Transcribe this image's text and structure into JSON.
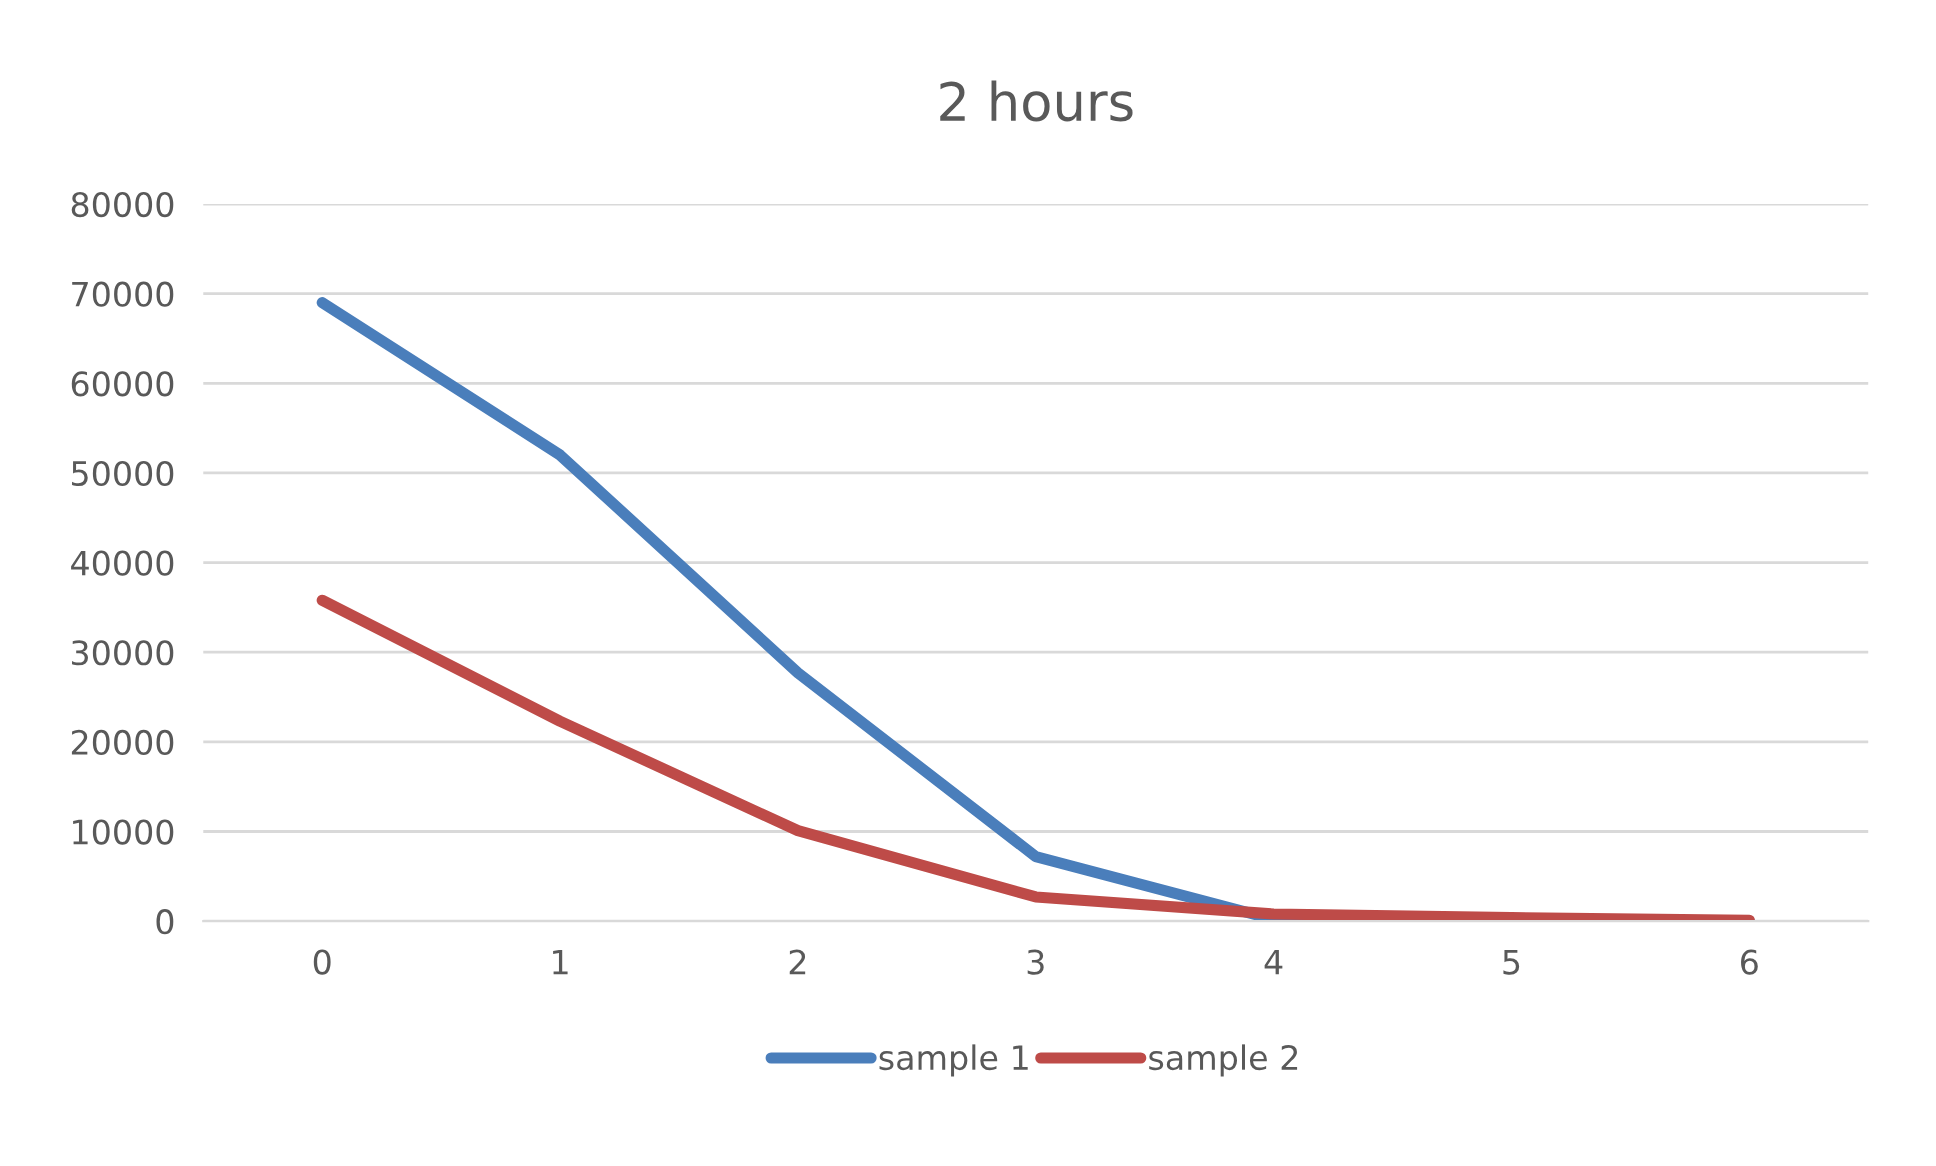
{
  "chart_data": {
    "type": "line",
    "title": "2 hours",
    "categories": [
      "0",
      "1",
      "2",
      "3",
      "4",
      "5",
      "6"
    ],
    "series": [
      {
        "name": "sample 1",
        "color": "#4a7ebb",
        "values": [
          69000,
          52000,
          27700,
          7200,
          200,
          null,
          0
        ]
      },
      {
        "name": "sample 2",
        "color": "#be4b48",
        "values": [
          35800,
          22300,
          10100,
          2700,
          800,
          400,
          100
        ]
      }
    ],
    "ylim": [
      0,
      80000
    ],
    "yticks": [
      0,
      10000,
      20000,
      30000,
      40000,
      50000,
      60000,
      70000,
      80000
    ],
    "grid": "y",
    "legend": "bottom",
    "marker": "none",
    "line_style": "solid"
  }
}
